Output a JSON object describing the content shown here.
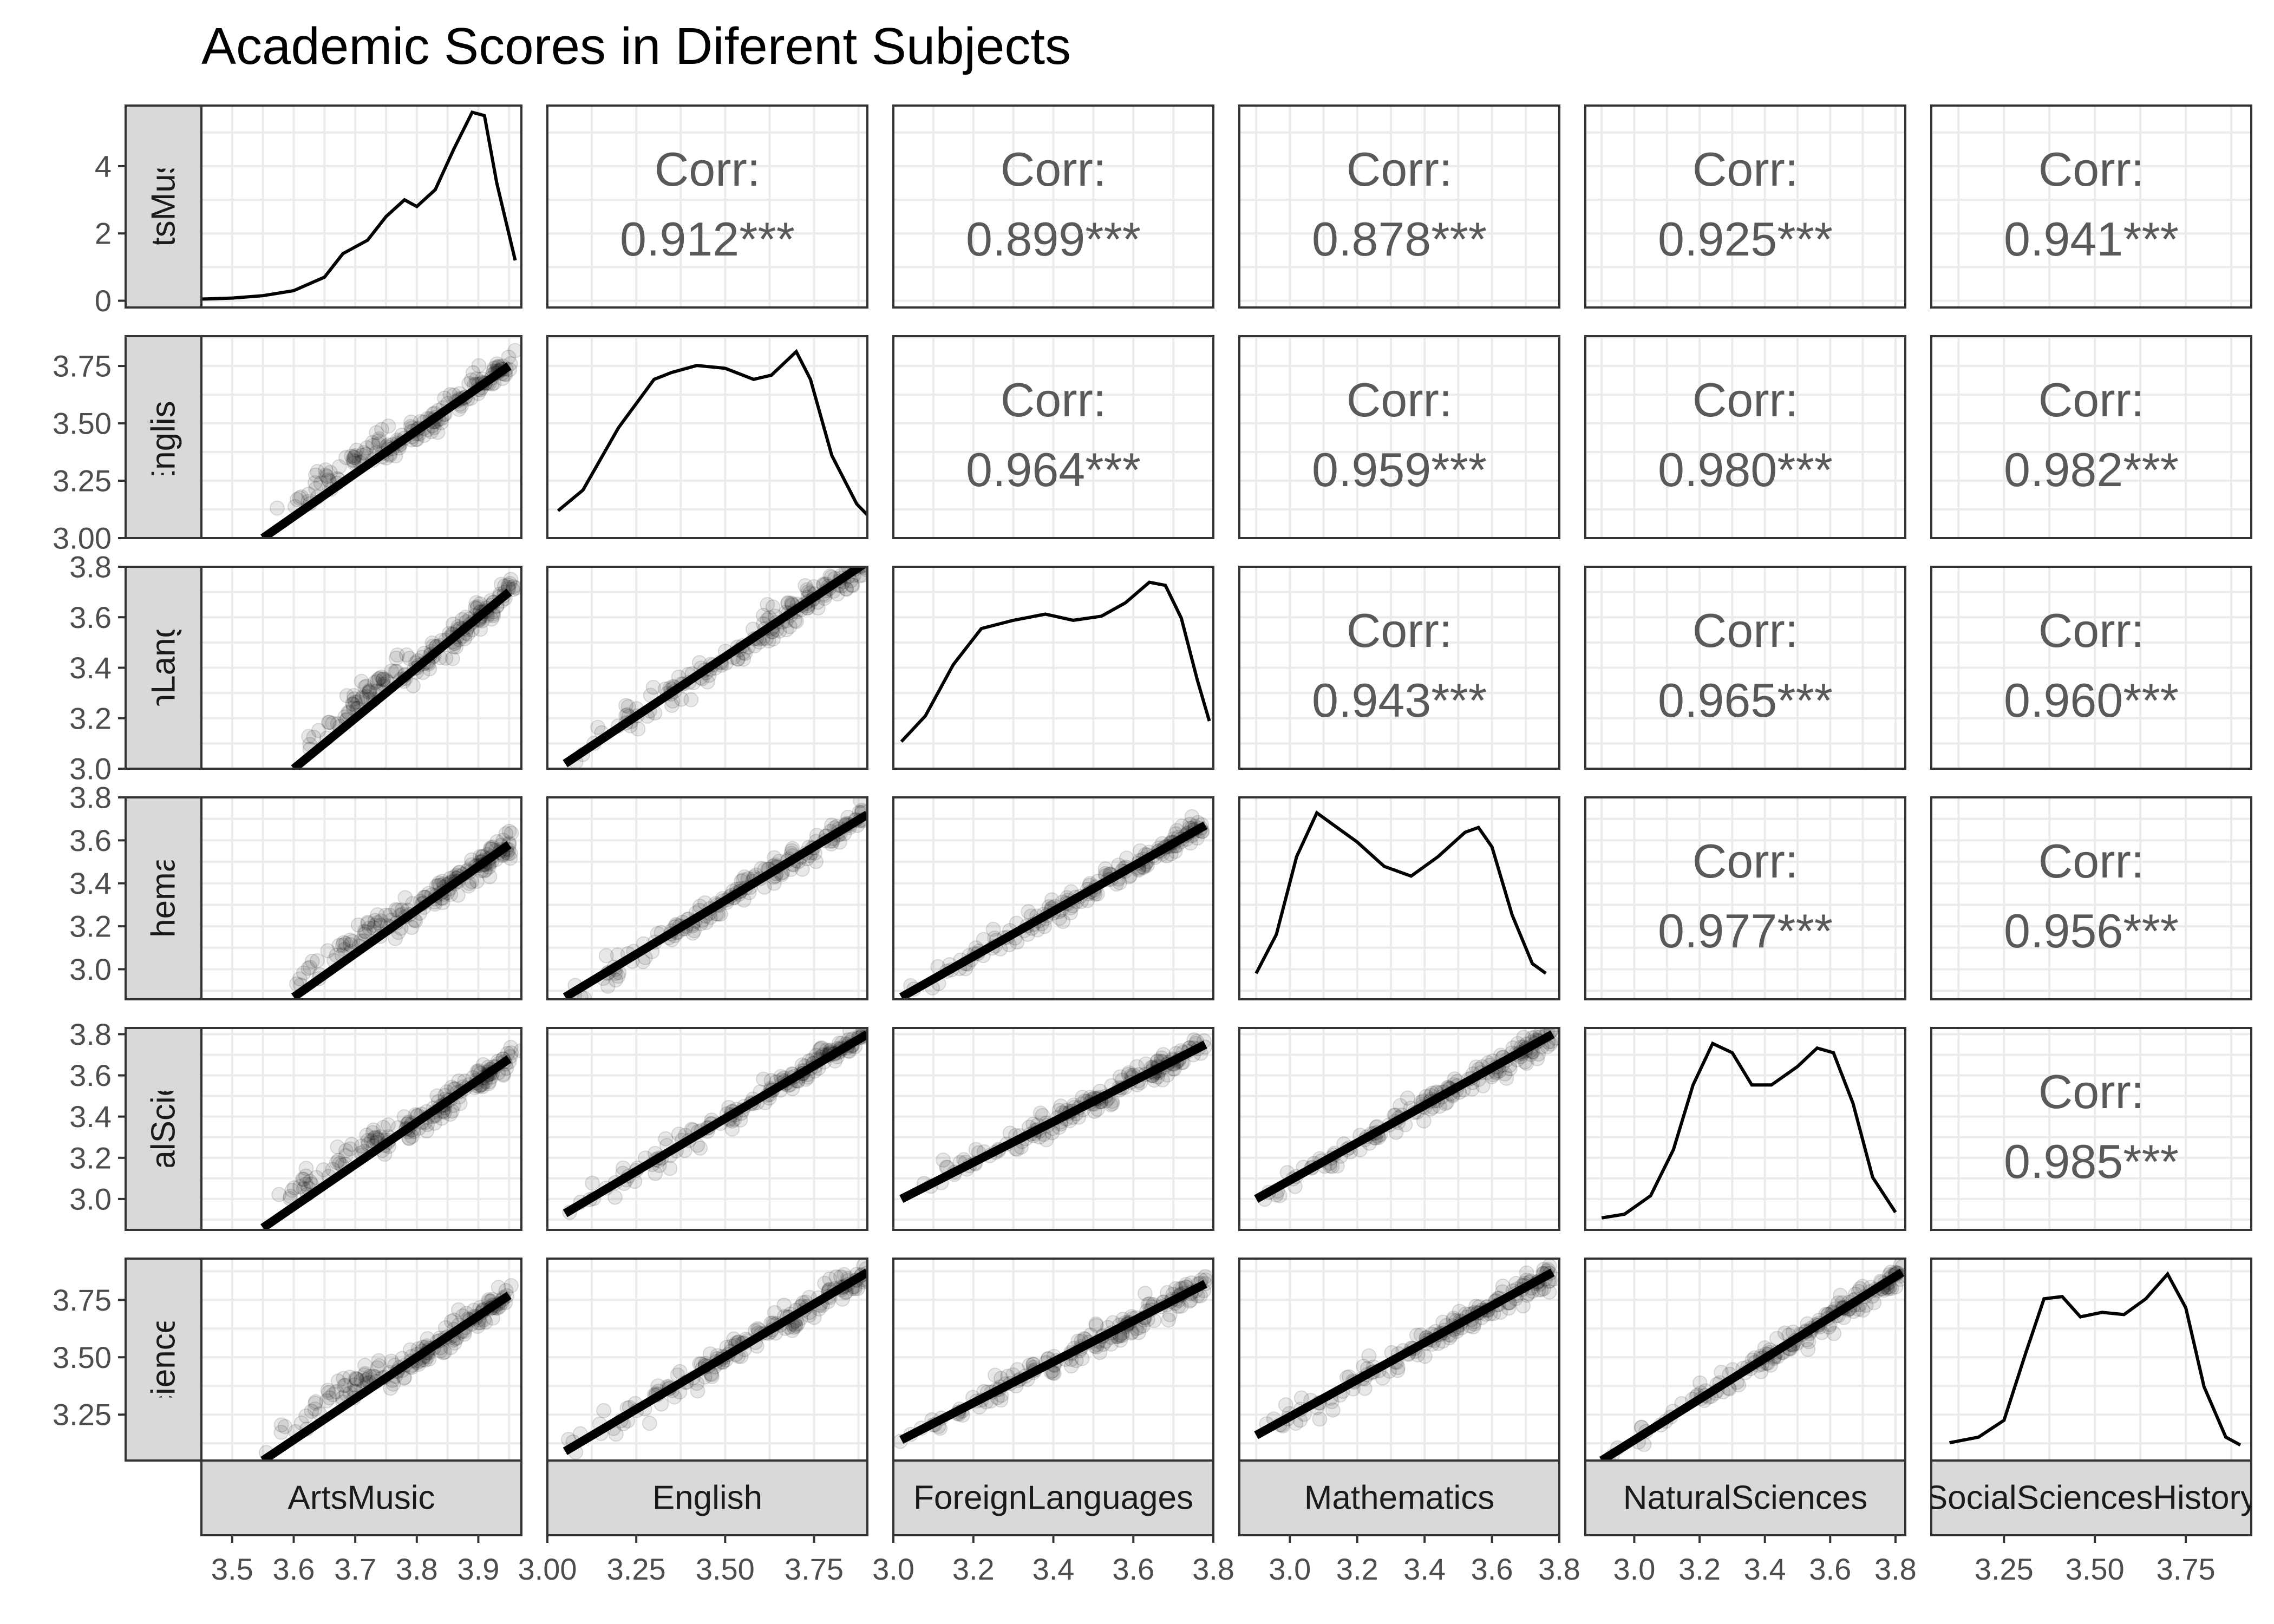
{
  "chart_data": {
    "type": "scatter",
    "title": "Academic Scores in Diferent Subjects",
    "variables": [
      "ArtsMusic",
      "English",
      "ForeignLanguages",
      "Mathematics",
      "NaturalSciences",
      "SocialSciencesHistory"
    ],
    "diagonal": "density",
    "lower": "scatter with linear fit",
    "upper": "correlation",
    "corr_label": "Corr:",
    "correlations": [
      {
        "row": 0,
        "col": 1,
        "text": "0.912***"
      },
      {
        "row": 0,
        "col": 2,
        "text": "0.899***"
      },
      {
        "row": 0,
        "col": 3,
        "text": "0.878***"
      },
      {
        "row": 0,
        "col": 4,
        "text": "0.925***"
      },
      {
        "row": 0,
        "col": 5,
        "text": "0.941***"
      },
      {
        "row": 1,
        "col": 2,
        "text": "0.964***"
      },
      {
        "row": 1,
        "col": 3,
        "text": "0.959***"
      },
      {
        "row": 1,
        "col": 4,
        "text": "0.980***"
      },
      {
        "row": 1,
        "col": 5,
        "text": "0.982***"
      },
      {
        "row": 2,
        "col": 3,
        "text": "0.943***"
      },
      {
        "row": 2,
        "col": 4,
        "text": "0.965***"
      },
      {
        "row": 2,
        "col": 5,
        "text": "0.960***"
      },
      {
        "row": 3,
        "col": 4,
        "text": "0.977***"
      },
      {
        "row": 3,
        "col": 5,
        "text": "0.956***"
      },
      {
        "row": 4,
        "col": 5,
        "text": "0.985***"
      }
    ],
    "x_axes": [
      {
        "lim": [
          3.45,
          3.97
        ],
        "ticks": [
          3.5,
          3.6,
          3.7,
          3.8,
          3.9
        ],
        "labels": [
          "3.5",
          "3.6",
          "3.7",
          "3.8",
          "3.9"
        ]
      },
      {
        "lim": [
          3.0,
          3.9
        ],
        "ticks": [
          3.0,
          3.25,
          3.5,
          3.75
        ],
        "labels": [
          "3.00",
          "3.25",
          "3.50",
          "3.75"
        ]
      },
      {
        "lim": [
          3.0,
          3.8
        ],
        "ticks": [
          3.0,
          3.2,
          3.4,
          3.6,
          3.8
        ],
        "labels": [
          "3.0",
          "3.2",
          "3.4",
          "3.6",
          "3.8"
        ]
      },
      {
        "lim": [
          2.85,
          3.8
        ],
        "ticks": [
          3.0,
          3.2,
          3.4,
          3.6,
          3.8
        ],
        "labels": [
          "3.0",
          "3.2",
          "3.4",
          "3.6",
          "3.8"
        ]
      },
      {
        "lim": [
          2.85,
          3.83
        ],
        "ticks": [
          3.0,
          3.2,
          3.4,
          3.6,
          3.8
        ],
        "labels": [
          "3.0",
          "3.2",
          "3.4",
          "3.6",
          "3.8"
        ]
      },
      {
        "lim": [
          3.05,
          3.93
        ],
        "ticks": [
          3.25,
          3.5,
          3.75
        ],
        "labels": [
          "3.25",
          "3.50",
          "3.75"
        ]
      }
    ],
    "y_axes": [
      {
        "lim": [
          -0.2,
          5.8
        ],
        "ticks": [
          0,
          2,
          4
        ],
        "labels": [
          "0",
          "2",
          "4"
        ]
      },
      {
        "lim": [
          3.0,
          3.88
        ],
        "ticks": [
          3.0,
          3.25,
          3.5,
          3.75
        ],
        "labels": [
          "3.00",
          "3.25",
          "3.50",
          "3.75"
        ]
      },
      {
        "lim": [
          3.0,
          3.8
        ],
        "ticks": [
          3.0,
          3.2,
          3.4,
          3.6,
          3.8
        ],
        "labels": [
          "3.0",
          "3.2",
          "3.4",
          "3.6",
          "3.8"
        ]
      },
      {
        "lim": [
          2.86,
          3.8
        ],
        "ticks": [
          3.0,
          3.2,
          3.4,
          3.6,
          3.8
        ],
        "labels": [
          "3.0",
          "3.2",
          "3.4",
          "3.6",
          "3.8"
        ]
      },
      {
        "lim": [
          2.85,
          3.83
        ],
        "ticks": [
          3.0,
          3.2,
          3.4,
          3.6,
          3.8
        ],
        "labels": [
          "3.0",
          "3.2",
          "3.4",
          "3.6",
          "3.8"
        ]
      },
      {
        "lim": [
          3.05,
          3.93
        ],
        "ticks": [
          3.25,
          3.5,
          3.75
        ],
        "labels": [
          "3.25",
          "3.50",
          "3.75"
        ]
      }
    ],
    "fit_lines": [
      {
        "row": 1,
        "col": 0,
        "x": [
          3.55,
          3.95
        ],
        "y": [
          3.0,
          3.75
        ]
      },
      {
        "row": 2,
        "col": 0,
        "x": [
          3.6,
          3.95
        ],
        "y": [
          3.0,
          3.7
        ]
      },
      {
        "row": 2,
        "col": 1,
        "x": [
          3.05,
          3.9
        ],
        "y": [
          3.02,
          3.82
        ]
      },
      {
        "row": 3,
        "col": 0,
        "x": [
          3.6,
          3.95
        ],
        "y": [
          2.87,
          3.58
        ]
      },
      {
        "row": 3,
        "col": 1,
        "x": [
          3.05,
          3.9
        ],
        "y": [
          2.87,
          3.72
        ]
      },
      {
        "row": 3,
        "col": 2,
        "x": [
          3.02,
          3.78
        ],
        "y": [
          2.87,
          3.67
        ]
      },
      {
        "row": 4,
        "col": 0,
        "x": [
          3.55,
          3.95
        ],
        "y": [
          2.86,
          3.68
        ]
      },
      {
        "row": 4,
        "col": 1,
        "x": [
          3.05,
          3.9
        ],
        "y": [
          2.93,
          3.8
        ]
      },
      {
        "row": 4,
        "col": 2,
        "x": [
          3.02,
          3.78
        ],
        "y": [
          3.0,
          3.75
        ]
      },
      {
        "row": 4,
        "col": 3,
        "x": [
          2.9,
          3.78
        ],
        "y": [
          3.0,
          3.8
        ]
      },
      {
        "row": 5,
        "col": 0,
        "x": [
          3.55,
          3.95
        ],
        "y": [
          3.05,
          3.77
        ]
      },
      {
        "row": 5,
        "col": 1,
        "x": [
          3.05,
          3.9
        ],
        "y": [
          3.09,
          3.87
        ]
      },
      {
        "row": 5,
        "col": 2,
        "x": [
          3.02,
          3.78
        ],
        "y": [
          3.14,
          3.82
        ]
      },
      {
        "row": 5,
        "col": 3,
        "x": [
          2.9,
          3.78
        ],
        "y": [
          3.16,
          3.87
        ]
      },
      {
        "row": 5,
        "col": 4,
        "x": [
          2.9,
          3.82
        ],
        "y": [
          3.05,
          3.87
        ]
      }
    ],
    "densities": [
      {
        "var": "ArtsMusic",
        "x": [
          3.45,
          3.5,
          3.55,
          3.6,
          3.65,
          3.68,
          3.72,
          3.75,
          3.78,
          3.8,
          3.83,
          3.86,
          3.89,
          3.91,
          3.93,
          3.96
        ],
        "y": [
          0.05,
          0.08,
          0.15,
          0.3,
          0.7,
          1.4,
          1.8,
          2.5,
          3.0,
          2.8,
          3.3,
          4.5,
          5.6,
          5.5,
          3.5,
          1.2
        ]
      },
      {
        "var": "English",
        "x": [
          3.03,
          3.1,
          3.2,
          3.3,
          3.35,
          3.42,
          3.5,
          3.58,
          3.63,
          3.7,
          3.74,
          3.8,
          3.87,
          3.9
        ],
        "y": [
          0.15,
          0.3,
          0.75,
          1.1,
          1.15,
          1.2,
          1.18,
          1.1,
          1.13,
          1.3,
          1.1,
          0.55,
          0.2,
          0.12
        ]
      },
      {
        "var": "ForeignLanguages",
        "x": [
          3.02,
          3.08,
          3.15,
          3.22,
          3.3,
          3.38,
          3.45,
          3.52,
          3.58,
          3.64,
          3.68,
          3.72,
          3.76,
          3.79
        ],
        "y": [
          0.2,
          0.45,
          0.95,
          1.3,
          1.38,
          1.44,
          1.38,
          1.42,
          1.55,
          1.75,
          1.72,
          1.4,
          0.8,
          0.4
        ]
      },
      {
        "var": "Mathematics",
        "x": [
          2.9,
          2.96,
          3.02,
          3.08,
          3.14,
          3.2,
          3.28,
          3.36,
          3.44,
          3.52,
          3.56,
          3.6,
          3.66,
          3.72,
          3.76
        ],
        "y": [
          0.2,
          0.6,
          1.4,
          1.85,
          1.7,
          1.55,
          1.3,
          1.2,
          1.4,
          1.65,
          1.7,
          1.5,
          0.8,
          0.3,
          0.2
        ]
      },
      {
        "var": "NaturalSciences",
        "x": [
          2.9,
          2.97,
          3.05,
          3.12,
          3.18,
          3.24,
          3.3,
          3.36,
          3.42,
          3.5,
          3.56,
          3.61,
          3.67,
          3.73,
          3.8
        ],
        "y": [
          0.06,
          0.1,
          0.3,
          0.8,
          1.5,
          1.95,
          1.85,
          1.5,
          1.5,
          1.7,
          1.9,
          1.85,
          1.3,
          0.5,
          0.12
        ]
      },
      {
        "var": "SocialSciencesHistory",
        "x": [
          3.1,
          3.18,
          3.25,
          3.31,
          3.36,
          3.41,
          3.46,
          3.52,
          3.58,
          3.64,
          3.7,
          3.75,
          3.8,
          3.86,
          3.9
        ],
        "y": [
          0.1,
          0.15,
          0.3,
          0.9,
          1.38,
          1.4,
          1.22,
          1.26,
          1.24,
          1.38,
          1.6,
          1.3,
          0.6,
          0.15,
          0.08
        ]
      }
    ]
  }
}
